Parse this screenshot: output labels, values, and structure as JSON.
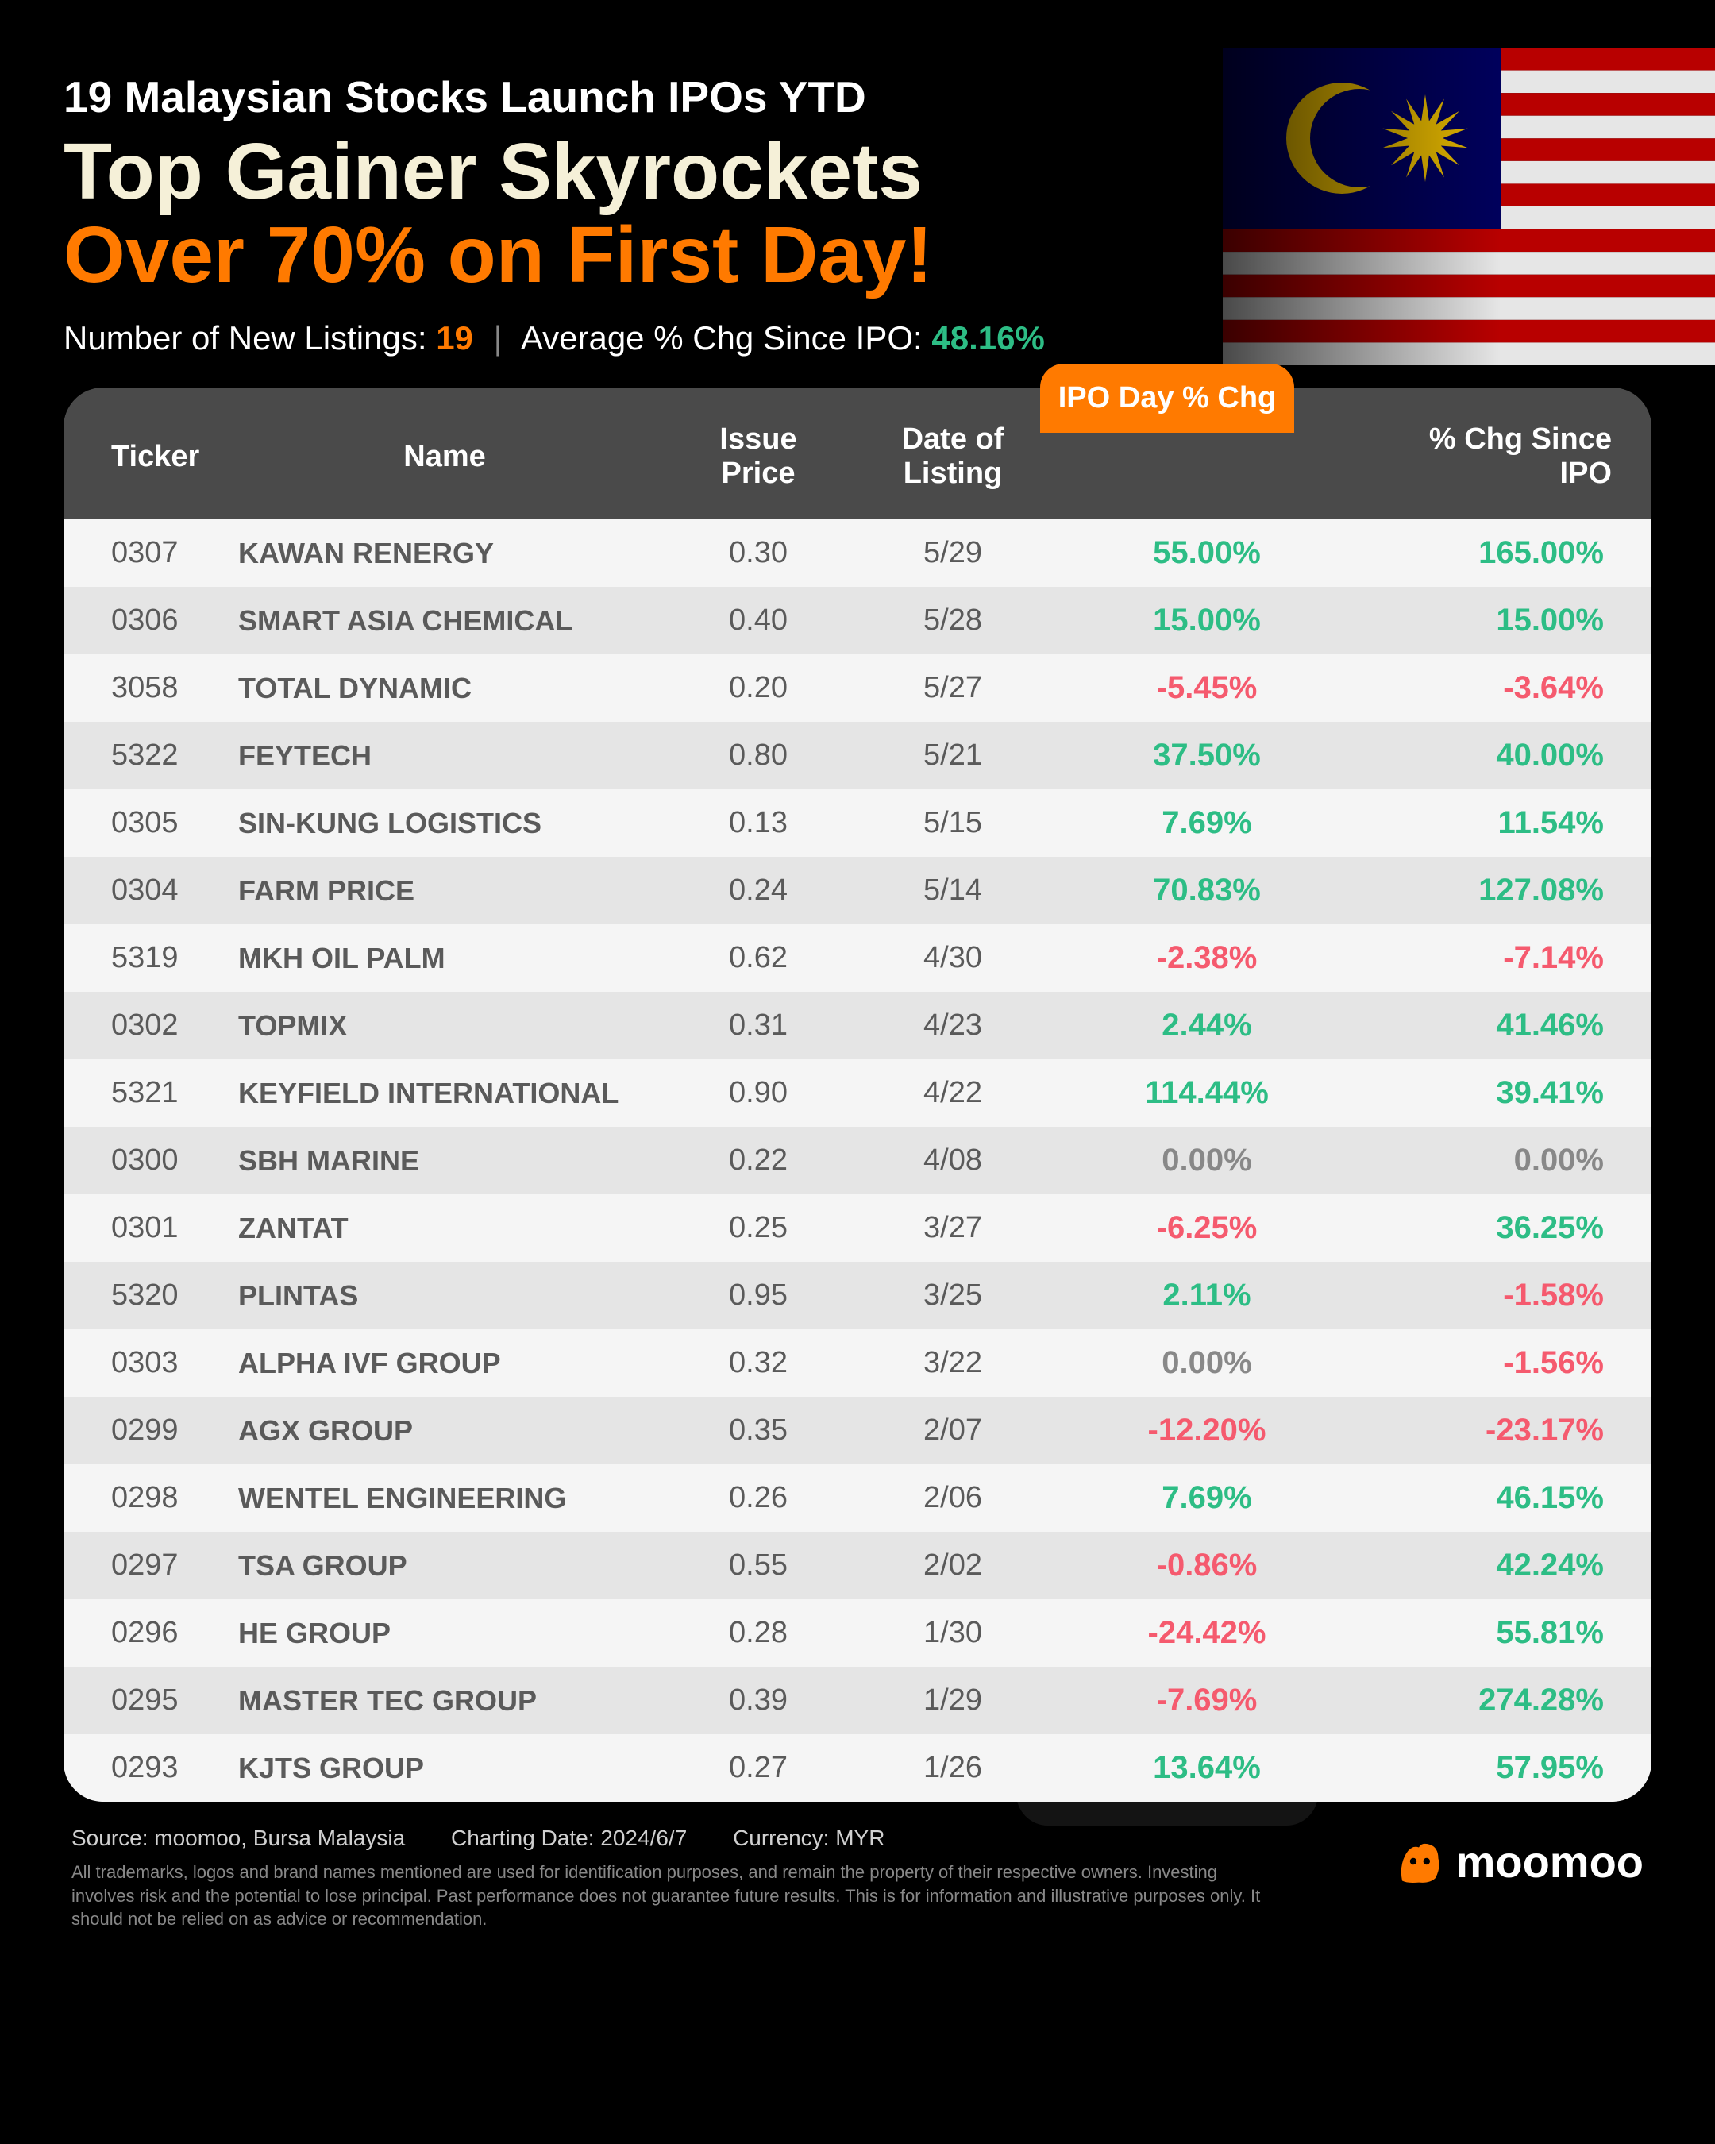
{
  "header": {
    "subtitle": "19 Malaysian Stocks Launch IPOs YTD",
    "title_line1": "Top Gainer Skyrockets",
    "title_line2": "Over 70% on First Day!",
    "stats_label1": "Number of New Listings:",
    "stats_value1": "19",
    "stats_label2": "Average % Chg Since IPO:",
    "stats_value2": "48.16%"
  },
  "colors": {
    "background": "#000000",
    "accent_orange": "#ff7a00",
    "accent_cream": "#f5f0d8",
    "positive": "#2dbd85",
    "negative": "#f55a6e",
    "zero": "#888888",
    "header_bg": "#4a4a4a",
    "row_odd": "#f5f5f5",
    "row_even": "#e5e5e5",
    "text_cell": "#5a5a5a"
  },
  "table": {
    "columns": [
      "Ticker",
      "Name",
      "Issue Price",
      "Date of Listing",
      "IPO Day % Chg",
      "% Chg Since IPO"
    ],
    "highlight_label": "IPO Day % Chg",
    "rows": [
      {
        "ticker": "0307",
        "name": "KAWAN RENERGY",
        "price": "0.30",
        "date": "5/29",
        "ipo": "55.00%",
        "ipo_sign": "pos",
        "since": "165.00%",
        "since_sign": "pos"
      },
      {
        "ticker": "0306",
        "name": "SMART ASIA CHEMICAL",
        "price": "0.40",
        "date": "5/28",
        "ipo": "15.00%",
        "ipo_sign": "pos",
        "since": "15.00%",
        "since_sign": "pos"
      },
      {
        "ticker": "3058",
        "name": "TOTAL DYNAMIC",
        "price": "0.20",
        "date": "5/27",
        "ipo": "-5.45%",
        "ipo_sign": "neg",
        "since": "-3.64%",
        "since_sign": "neg"
      },
      {
        "ticker": "5322",
        "name": "FEYTECH",
        "price": "0.80",
        "date": "5/21",
        "ipo": "37.50%",
        "ipo_sign": "pos",
        "since": "40.00%",
        "since_sign": "pos"
      },
      {
        "ticker": "0305",
        "name": "SIN-KUNG LOGISTICS",
        "price": "0.13",
        "date": "5/15",
        "ipo": "7.69%",
        "ipo_sign": "pos",
        "since": "11.54%",
        "since_sign": "pos"
      },
      {
        "ticker": "0304",
        "name": "FARM PRICE",
        "price": "0.24",
        "date": "5/14",
        "ipo": "70.83%",
        "ipo_sign": "pos",
        "since": "127.08%",
        "since_sign": "pos"
      },
      {
        "ticker": "5319",
        "name": "MKH OIL PALM",
        "price": "0.62",
        "date": "4/30",
        "ipo": "-2.38%",
        "ipo_sign": "neg",
        "since": "-7.14%",
        "since_sign": "neg"
      },
      {
        "ticker": "0302",
        "name": "TOPMIX",
        "price": "0.31",
        "date": "4/23",
        "ipo": "2.44%",
        "ipo_sign": "pos",
        "since": "41.46%",
        "since_sign": "pos"
      },
      {
        "ticker": "5321",
        "name": "KEYFIELD INTERNATIONAL",
        "price": "0.90",
        "date": "4/22",
        "ipo": "114.44%",
        "ipo_sign": "pos",
        "since": "39.41%",
        "since_sign": "pos"
      },
      {
        "ticker": "0300",
        "name": "SBH MARINE",
        "price": "0.22",
        "date": "4/08",
        "ipo": "0.00%",
        "ipo_sign": "zero",
        "since": "0.00%",
        "since_sign": "zero"
      },
      {
        "ticker": "0301",
        "name": "ZANTAT",
        "price": "0.25",
        "date": "3/27",
        "ipo": "-6.25%",
        "ipo_sign": "neg",
        "since": "36.25%",
        "since_sign": "pos"
      },
      {
        "ticker": "5320",
        "name": "PLINTAS",
        "price": "0.95",
        "date": "3/25",
        "ipo": "2.11%",
        "ipo_sign": "pos",
        "since": "-1.58%",
        "since_sign": "neg"
      },
      {
        "ticker": "0303",
        "name": "ALPHA IVF GROUP",
        "price": "0.32",
        "date": "3/22",
        "ipo": "0.00%",
        "ipo_sign": "zero",
        "since": "-1.56%",
        "since_sign": "neg"
      },
      {
        "ticker": "0299",
        "name": "AGX GROUP",
        "price": "0.35",
        "date": "2/07",
        "ipo": "-12.20%",
        "ipo_sign": "neg",
        "since": "-23.17%",
        "since_sign": "neg"
      },
      {
        "ticker": "0298",
        "name": "WENTEL ENGINEERING",
        "price": "0.26",
        "date": "2/06",
        "ipo": "7.69%",
        "ipo_sign": "pos",
        "since": "46.15%",
        "since_sign": "pos"
      },
      {
        "ticker": "0297",
        "name": "TSA GROUP",
        "price": "0.55",
        "date": "2/02",
        "ipo": "-0.86%",
        "ipo_sign": "neg",
        "since": "42.24%",
        "since_sign": "pos"
      },
      {
        "ticker": "0296",
        "name": "HE GROUP",
        "price": "0.28",
        "date": "1/30",
        "ipo": "-24.42%",
        "ipo_sign": "neg",
        "since": "55.81%",
        "since_sign": "pos"
      },
      {
        "ticker": "0295",
        "name": "MASTER TEC GROUP",
        "price": "0.39",
        "date": "1/29",
        "ipo": "-7.69%",
        "ipo_sign": "neg",
        "since": "274.28%",
        "since_sign": "pos"
      },
      {
        "ticker": "0293",
        "name": "KJTS GROUP",
        "price": "0.27",
        "date": "1/26",
        "ipo": "13.64%",
        "ipo_sign": "pos",
        "since": "57.95%",
        "since_sign": "pos"
      }
    ]
  },
  "footer": {
    "source": "Source: moomoo, Bursa Malaysia",
    "chart_date": "Charting Date: 2024/6/7",
    "currency": "Currency: MYR",
    "disclaimer": "All trademarks, logos and brand names mentioned are used for identification purposes, and remain the property of their respective owners. Investing involves risk and the potential to lose principal. Past performance does not guarantee future results. This is for information and illustrative purposes only. It should not be relied on as advice or recommendation.",
    "logo_text": "moomoo"
  },
  "flag": {
    "stripe_red": "#cc0001",
    "stripe_white": "#ffffff",
    "canton_blue": "#010066",
    "emblem_yellow": "#ffcc00"
  }
}
